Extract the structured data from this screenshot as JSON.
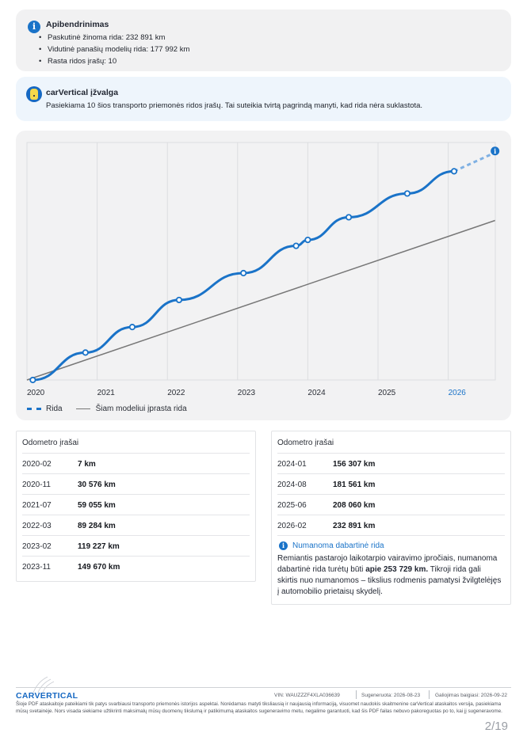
{
  "summary": {
    "title": "Apibendrinimas",
    "icon": "info-icon",
    "items": [
      "Paskutinė žinoma rida: 232 891 km",
      "Vidutinė panašių modelių rida: 177 992 km",
      "Rasta ridos įrašų: 10"
    ]
  },
  "insight": {
    "title": "carVertical įžvalga",
    "text": "Pasiekiama 10 šios transporto priemonės ridos įrašų. Tai suteikia tvirtą pagrindą manyti, kad rida nėra suklastota."
  },
  "chart_data": {
    "type": "line",
    "x_ticks": [
      "2020",
      "2021",
      "2022",
      "2023",
      "2024",
      "2025",
      "2026"
    ],
    "highlight_tick": "2026",
    "grid": true,
    "legend": [
      {
        "label": "Rida",
        "style": "dashed-dots",
        "color": "#1a73c8"
      },
      {
        "label": "Šiam modeliui įprasta rida",
        "style": "solid",
        "color": "#777777"
      }
    ],
    "series": [
      {
        "name": "Rida",
        "points": [
          {
            "date": "2020-02",
            "value": 7
          },
          {
            "date": "2020-11",
            "value": 30576
          },
          {
            "date": "2021-07",
            "value": 59055
          },
          {
            "date": "2022-03",
            "value": 89284
          },
          {
            "date": "2023-02",
            "value": 119227
          },
          {
            "date": "2023-11",
            "value": 149670
          },
          {
            "date": "2024-01",
            "value": 156307
          },
          {
            "date": "2024-08",
            "value": 181561
          },
          {
            "date": "2025-06",
            "value": 208060
          },
          {
            "date": "2026-02",
            "value": 232891
          }
        ],
        "estimate": {
          "date": "2026-09",
          "value": 253729
        }
      },
      {
        "name": "Šiam modeliui įprasta rida",
        "points": [
          {
            "date": "2020-01",
            "value": 0
          },
          {
            "date": "2026-09",
            "value": 177992
          }
        ]
      }
    ]
  },
  "table_left": {
    "header": "Odometro įrašai",
    "rows": [
      {
        "date": "2020-02",
        "value": "7 km"
      },
      {
        "date": "2020-11",
        "value": "30 576 km"
      },
      {
        "date": "2021-07",
        "value": "59 055 km"
      },
      {
        "date": "2022-03",
        "value": "89 284 km"
      },
      {
        "date": "2023-02",
        "value": "119 227 km"
      },
      {
        "date": "2023-11",
        "value": "149 670 km"
      }
    ]
  },
  "table_right": {
    "header": "Odometro įrašai",
    "rows": [
      {
        "date": "2024-01",
        "value": "156 307 km"
      },
      {
        "date": "2024-08",
        "value": "181 561 km"
      },
      {
        "date": "2025-06",
        "value": "208 060 km"
      },
      {
        "date": "2026-02",
        "value": "232 891 km"
      }
    ],
    "estimate_title": "Numanoma dabartinė rida",
    "estimate_text_1": "Remiantis pastarojo laikotarpio vairavimo įpročiais, numanoma dabartinė rida turėtų būti ",
    "estimate_bold": "apie 253 729 km.",
    "estimate_text_2": " Tikroji rida gali skirtis nuo numanomos – tikslius rodmenis pamatysi žvilgtelėjęs į automobilio prietaisų skydelį."
  },
  "footer": {
    "logo": "CARVERTICAL",
    "vin": "VIN: WAUZZZF4XLA036639",
    "generated": "Sugeneruota: 2026-08-23",
    "valid": "Galiojimas baigiasi: 2026-09-22",
    "disclaimer": "Šioje PDF ataskaitoje pateikiami tik patys svarbiausi transporto priemonės istorijos aspektai. Norėdamas matyti tiksliausią ir naujausią informaciją, visuomet naudokis skaitmenine carVertical ataskaitos versija, pasiekiama mūsų svetainėje. Nors visada siekiame užtikrinti maksimalų mūsų duomenų tikslumą ir patikimumą ataskaitos sugeneravimo metu, negalime garantuoti, kad šis PDF failas nebuvo pakoreguotas po to, kai jį sugeneravome.",
    "page": "2/19"
  }
}
